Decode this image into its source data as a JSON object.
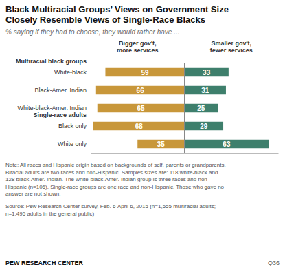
{
  "chart_data": {
    "type": "bar",
    "orientation": "horizontal",
    "title": "Black Multiracial Groups’ Views on Government Size\nClosely Resemble Views of Single-Race Blacks",
    "subtitle": "% saying if they had to choose, they would rather have ...",
    "categories": [
      "White-black",
      "Black-Amer. Indian",
      "White-black-Amer. Indian",
      "Black only",
      "White only"
    ],
    "series": [
      {
        "name": "Bigger gov't,\nmore services",
        "color": "#C8973A",
        "values": [
          59,
          66,
          65,
          68,
          35
        ]
      },
      {
        "name": "Smaller gov't,\nfewer services",
        "color": "#3E7F6C",
        "values": [
          33,
          31,
          25,
          29,
          63
        ]
      }
    ],
    "xlim": [
      0,
      70
    ],
    "data_labels": true,
    "tick_labels": "y",
    "grid": false,
    "groups": [
      {
        "label": "Multiracial black groups",
        "first": "White-black"
      },
      {
        "label": "Single-race adults",
        "first": "Black only"
      }
    ],
    "note": "Note: All races and Hispanic origin based on backgrounds of self, parents or grandparents.\nBiracial adults are two races and non-Hispanic. Samples sizes are: 118 white-black and\n128 black-Amer. Indian. The white-black-Amer. Indian group is three races and non-\nHispanic (n=106). Single-race groups are one race and non-Hispanic. Those who gave no\nanswer are not shown.",
    "source": "Source: Pew Research Center survey, Feb. 6-April 6, 2015 (n=1,555 multiracial adults;\nn=1,495 adults in the general public)",
    "credit": "PEW RESEARCH CENTER",
    "question": "Q36"
  }
}
